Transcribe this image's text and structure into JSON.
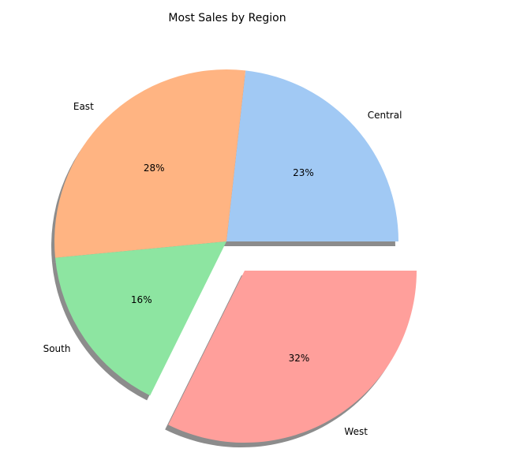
{
  "chart_data": {
    "type": "pie",
    "title": "Most Sales by Region",
    "slices": [
      {
        "label": "Central",
        "value": 23,
        "pct_label": "23%",
        "color": "#a1c9f4",
        "explode": false
      },
      {
        "label": "East",
        "value": 28,
        "pct_label": "28%",
        "color": "#ffb482",
        "explode": false
      },
      {
        "label": "South",
        "value": 16,
        "pct_label": "16%",
        "color": "#8de5a1",
        "explode": false
      },
      {
        "label": "West",
        "value": 32,
        "pct_label": "32%",
        "color": "#ff9f9b",
        "explode": true
      }
    ],
    "start_angle": 0,
    "direction": "counterclockwise",
    "shadow": true
  }
}
